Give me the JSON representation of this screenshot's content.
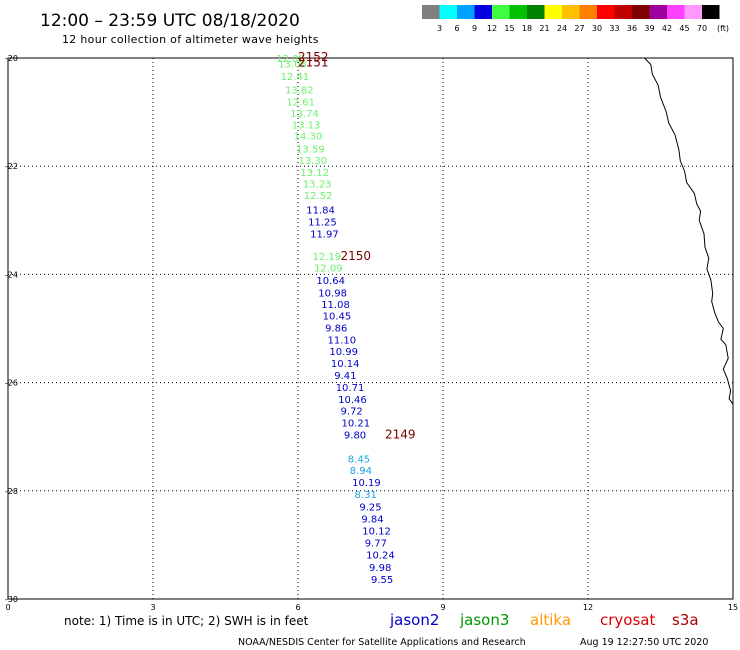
{
  "header": {
    "title": "12:00 – 23:59 UTC 08/18/2020",
    "subtitle": "12 hour collection of altimeter wave heights"
  },
  "colorbar": {
    "unit": "(ft)",
    "bins": [
      {
        "color": "#808080",
        "label": "3"
      },
      {
        "color": "#00ffff",
        "label": "6"
      },
      {
        "color": "#00a0ff",
        "label": "9"
      },
      {
        "color": "#0000e0",
        "label": "12"
      },
      {
        "color": "#40ff40",
        "label": "15"
      },
      {
        "color": "#00c000",
        "label": "18"
      },
      {
        "color": "#008000",
        "label": "21"
      },
      {
        "color": "#ffff00",
        "label": "24"
      },
      {
        "color": "#ffc000",
        "label": "27"
      },
      {
        "color": "#ff8000",
        "label": "30"
      },
      {
        "color": "#ff0000",
        "label": "33"
      },
      {
        "color": "#c00000",
        "label": "36"
      },
      {
        "color": "#800000",
        "label": "39"
      },
      {
        "color": "#a000a0",
        "label": "42"
      },
      {
        "color": "#ff40ff",
        "label": "45"
      },
      {
        "color": "#ff99ff",
        "label": "70"
      },
      {
        "color": "#000000",
        "label": ""
      }
    ]
  },
  "chart_data": {
    "type": "scatter",
    "xlim": [
      0,
      15
    ],
    "ylim": [
      -30,
      -20
    ],
    "xticks": [
      0,
      3,
      6,
      9,
      12,
      15
    ],
    "yticks": [
      -20,
      -22,
      -24,
      -26,
      -28,
      -30
    ],
    "grid": true,
    "series": [
      {
        "color": "#6cf06c",
        "points": [
          {
            "x": 5.55,
            "y": -20.0,
            "label": "12.08"
          },
          {
            "x": 5.59,
            "y": -20.1,
            "label": "13.08"
          },
          {
            "x": 5.64,
            "y": -20.33,
            "label": "12.41"
          },
          {
            "x": 5.73,
            "y": -20.58,
            "label": "13.82"
          },
          {
            "x": 5.76,
            "y": -20.8,
            "label": "12.61"
          },
          {
            "x": 5.84,
            "y": -21.02,
            "label": "13.74"
          },
          {
            "x": 5.87,
            "y": -21.23,
            "label": "13.13"
          },
          {
            "x": 5.91,
            "y": -21.43,
            "label": "14.30"
          },
          {
            "x": 5.96,
            "y": -21.67,
            "label": "13.59"
          },
          {
            "x": 6.01,
            "y": -21.89,
            "label": "13.30"
          },
          {
            "x": 6.05,
            "y": -22.11,
            "label": "13.12"
          },
          {
            "x": 6.1,
            "y": -22.32,
            "label": "13.23"
          },
          {
            "x": 6.12,
            "y": -22.53,
            "label": "12.52"
          },
          {
            "x": 6.3,
            "y": -23.66,
            "label": "12.19"
          },
          {
            "x": 6.33,
            "y": -23.87,
            "label": "12.09"
          }
        ]
      },
      {
        "color": "#0000c8",
        "points": [
          {
            "x": 6.17,
            "y": -22.8,
            "label": "11.84"
          },
          {
            "x": 6.21,
            "y": -23.02,
            "label": "11.25"
          },
          {
            "x": 6.25,
            "y": -23.24,
            "label": "11.97"
          },
          {
            "x": 6.38,
            "y": -24.1,
            "label": "10.64"
          },
          {
            "x": 6.42,
            "y": -24.33,
            "label": "10.98"
          },
          {
            "x": 6.48,
            "y": -24.55,
            "label": "11.08"
          },
          {
            "x": 6.51,
            "y": -24.76,
            "label": "10.45"
          },
          {
            "x": 6.56,
            "y": -24.98,
            "label": "9.86"
          },
          {
            "x": 6.61,
            "y": -25.2,
            "label": "11.10"
          },
          {
            "x": 6.65,
            "y": -25.42,
            "label": "10.99"
          },
          {
            "x": 6.68,
            "y": -25.64,
            "label": "10.14"
          },
          {
            "x": 6.75,
            "y": -25.86,
            "label": "9.41"
          },
          {
            "x": 6.78,
            "y": -26.08,
            "label": "10.71"
          },
          {
            "x": 6.83,
            "y": -26.3,
            "label": "10.46"
          },
          {
            "x": 6.88,
            "y": -26.52,
            "label": "9.72"
          },
          {
            "x": 6.9,
            "y": -26.74,
            "label": "10.21"
          },
          {
            "x": 6.95,
            "y": -26.96,
            "label": "9.80"
          },
          {
            "x": 7.12,
            "y": -27.84,
            "label": "10.19"
          },
          {
            "x": 7.27,
            "y": -28.29,
            "label": "9.25"
          },
          {
            "x": 7.31,
            "y": -28.51,
            "label": "9.84"
          },
          {
            "x": 7.33,
            "y": -28.73,
            "label": "10.12"
          },
          {
            "x": 7.38,
            "y": -28.96,
            "label": "9.77"
          },
          {
            "x": 7.41,
            "y": -29.18,
            "label": "10.24"
          },
          {
            "x": 7.47,
            "y": -29.41,
            "label": "9.98"
          },
          {
            "x": 7.51,
            "y": -29.63,
            "label": "9.55"
          }
        ]
      },
      {
        "color": "#1aa6e6",
        "points": [
          {
            "x": 7.03,
            "y": -27.4,
            "label": "8.45"
          },
          {
            "x": 7.07,
            "y": -27.62,
            "label": "8.94"
          },
          {
            "x": 7.17,
            "y": -28.06,
            "label": "8.31"
          }
        ]
      }
    ],
    "passes": [
      {
        "x": 6.0,
        "y": -19.98,
        "label": "2152"
      },
      {
        "x": 6.0,
        "y": -20.08,
        "label": "2151"
      },
      {
        "x": 6.88,
        "y": -23.66,
        "label": "2150"
      },
      {
        "x": 7.8,
        "y": -26.96,
        "label": "2149"
      }
    ],
    "coastline": [
      [
        13.17,
        -20.0
      ],
      [
        13.3,
        -20.12
      ],
      [
        13.33,
        -20.3
      ],
      [
        13.45,
        -20.5
      ],
      [
        13.5,
        -20.72
      ],
      [
        13.62,
        -21.0
      ],
      [
        13.67,
        -21.2
      ],
      [
        13.8,
        -21.42
      ],
      [
        13.88,
        -21.7
      ],
      [
        13.91,
        -21.9
      ],
      [
        14.0,
        -22.1
      ],
      [
        14.04,
        -22.3
      ],
      [
        14.2,
        -22.5
      ],
      [
        14.25,
        -22.7
      ],
      [
        14.33,
        -22.83
      ],
      [
        14.3,
        -23.0
      ],
      [
        14.4,
        -23.25
      ],
      [
        14.42,
        -23.5
      ],
      [
        14.5,
        -23.7
      ],
      [
        14.46,
        -23.9
      ],
      [
        14.54,
        -24.1
      ],
      [
        14.58,
        -24.35
      ],
      [
        14.56,
        -24.5
      ],
      [
        14.62,
        -24.7
      ],
      [
        14.7,
        -24.88
      ],
      [
        14.8,
        -25.0
      ],
      [
        14.75,
        -25.2
      ],
      [
        14.85,
        -25.3
      ],
      [
        14.9,
        -25.55
      ],
      [
        14.8,
        -25.75
      ],
      [
        14.88,
        -25.92
      ],
      [
        14.95,
        -26.15
      ],
      [
        14.92,
        -26.3
      ],
      [
        15.0,
        -26.4
      ]
    ]
  },
  "footer": {
    "note": "note:  1) Time is in UTC;  2) SWH is in feet",
    "missions": [
      {
        "label": "jason2",
        "color": "#0000cc"
      },
      {
        "label": "jason3",
        "color": "#009900"
      },
      {
        "label": "altika",
        "color": "#ff9900"
      },
      {
        "label": "cryosat",
        "color": "#dd0000"
      },
      {
        "label": "s3a",
        "color": "#aa0000"
      }
    ],
    "credit": "NOAA/NESDIS Center for Satellite Applications and Research",
    "timestamp": "Aug 19 12:27:50 UTC 2020"
  }
}
